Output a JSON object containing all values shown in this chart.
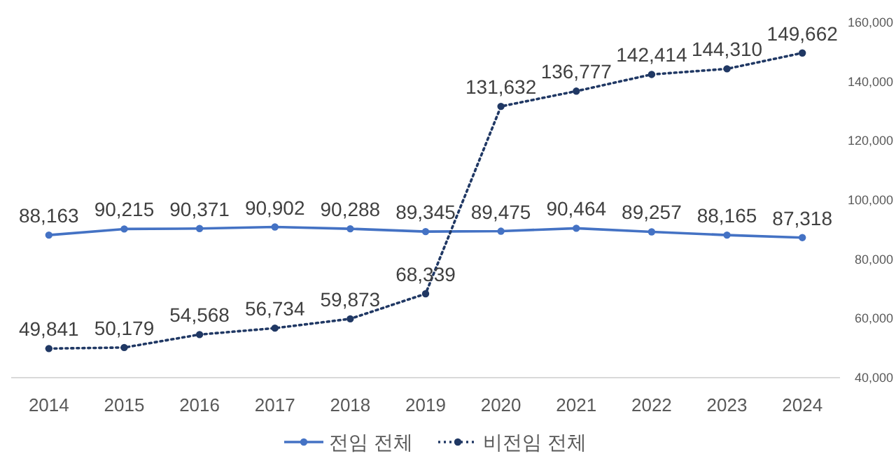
{
  "chart_data": {
    "type": "line",
    "categories": [
      "2014",
      "2015",
      "2016",
      "2017",
      "2018",
      "2019",
      "2020",
      "2021",
      "2022",
      "2023",
      "2024"
    ],
    "series": [
      {
        "name": "전임 전체",
        "color": "#4472c4",
        "line_style": "solid",
        "values": [
          88163,
          90215,
          90371,
          90902,
          90288,
          89345,
          89475,
          90464,
          89257,
          88165,
          87318
        ],
        "value_labels": [
          "88,163",
          "90,215",
          "90,371",
          "90,902",
          "90,288",
          "89,345",
          "89,475",
          "90,464",
          "89,257",
          "88,165",
          "87,318"
        ]
      },
      {
        "name": "비전임 전체",
        "color": "#203864",
        "line_style": "dotted",
        "values": [
          49841,
          50179,
          54568,
          56734,
          59873,
          68339,
          131632,
          136777,
          142414,
          144310,
          149662
        ],
        "value_labels": [
          "49,841",
          "50,179",
          "54,568",
          "56,734",
          "59,873",
          "68,339",
          "131,632",
          "136,777",
          "142,414",
          "144,310",
          "149,662"
        ]
      }
    ],
    "ylim": [
      40000,
      160000
    ],
    "yticks": [
      {
        "value": 40000,
        "label": "40,000"
      },
      {
        "value": 60000,
        "label": "60,000"
      },
      {
        "value": 80000,
        "label": "80,000"
      },
      {
        "value": 100000,
        "label": "100,000"
      },
      {
        "value": 120000,
        "label": "120,000"
      },
      {
        "value": 140000,
        "label": "140,000"
      },
      {
        "value": 160000,
        "label": "160,000"
      }
    ],
    "marker": "circle",
    "legend": "bottom"
  }
}
